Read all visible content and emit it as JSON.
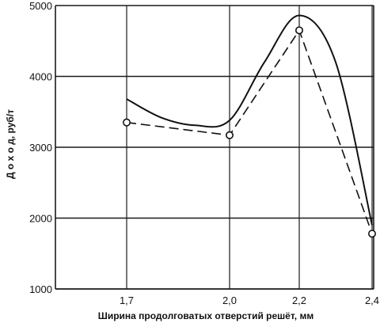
{
  "chart_data": {
    "type": "line",
    "xlabel": "Ширина продолговатых отверстий решёт, мм",
    "ylabel": "Д о х о д, руб/т",
    "x_ticks": [
      {
        "value": 1.7,
        "label": "1,7"
      },
      {
        "value": 2.0,
        "label": "2,0"
      },
      {
        "value": 2.2,
        "label": "2,2"
      },
      {
        "value": 2.4,
        "label": "2,4"
      }
    ],
    "y_ticks": [
      {
        "value": 1000,
        "label": "1000"
      },
      {
        "value": 2000,
        "label": "2000"
      },
      {
        "value": 3000,
        "label": "3000"
      },
      {
        "value": 4000,
        "label": "4000"
      },
      {
        "value": 5000,
        "label": "5000"
      }
    ],
    "ylim": [
      1000,
      5000
    ],
    "grid": "horizontal",
    "series": [
      {
        "style": "solid",
        "markers": false,
        "x": [
          1.7,
          1.8,
          1.9,
          2.0,
          2.1,
          2.2,
          2.3,
          2.4
        ],
        "y": [
          3680,
          3420,
          3310,
          3380,
          4200,
          4860,
          4200,
          1900
        ]
      },
      {
        "style": "dashed",
        "markers": true,
        "x": [
          1.7,
          2.0,
          2.2,
          2.4
        ],
        "y": [
          3350,
          3170,
          4650,
          1780
        ]
      }
    ]
  }
}
